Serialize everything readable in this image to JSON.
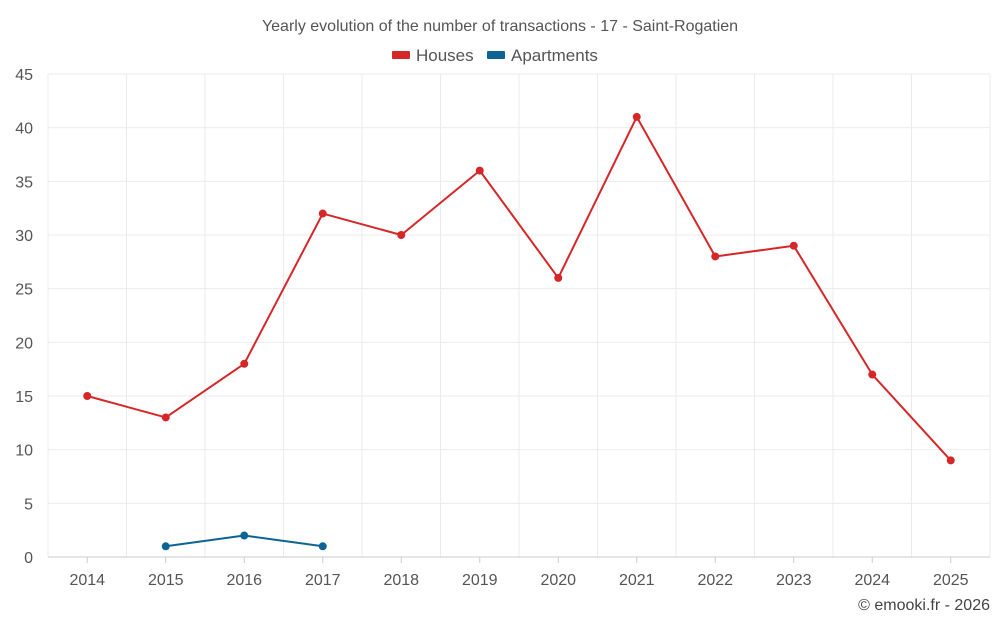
{
  "chart_data": {
    "type": "line",
    "title": "Yearly evolution of the number of transactions - 17 - Saint-Rogatien",
    "xlabel": "",
    "ylabel": "",
    "categories": [
      "2014",
      "2015",
      "2016",
      "2017",
      "2018",
      "2019",
      "2020",
      "2021",
      "2022",
      "2023",
      "2024",
      "2025"
    ],
    "ylim": [
      0,
      45
    ],
    "yticks": [
      0,
      5,
      10,
      15,
      20,
      25,
      30,
      35,
      40,
      45
    ],
    "grid": true,
    "legend_position": "top-center",
    "series": [
      {
        "name": "Houses",
        "color": "#d62728",
        "values": [
          15,
          13,
          18,
          32,
          30,
          36,
          26,
          41,
          28,
          29,
          17,
          9
        ]
      },
      {
        "name": "Apartments",
        "color": "#0b6494",
        "values": [
          null,
          1,
          2,
          1,
          null,
          null,
          null,
          null,
          null,
          null,
          null,
          null
        ]
      }
    ]
  },
  "credit": "© emooki.fr - 2026"
}
